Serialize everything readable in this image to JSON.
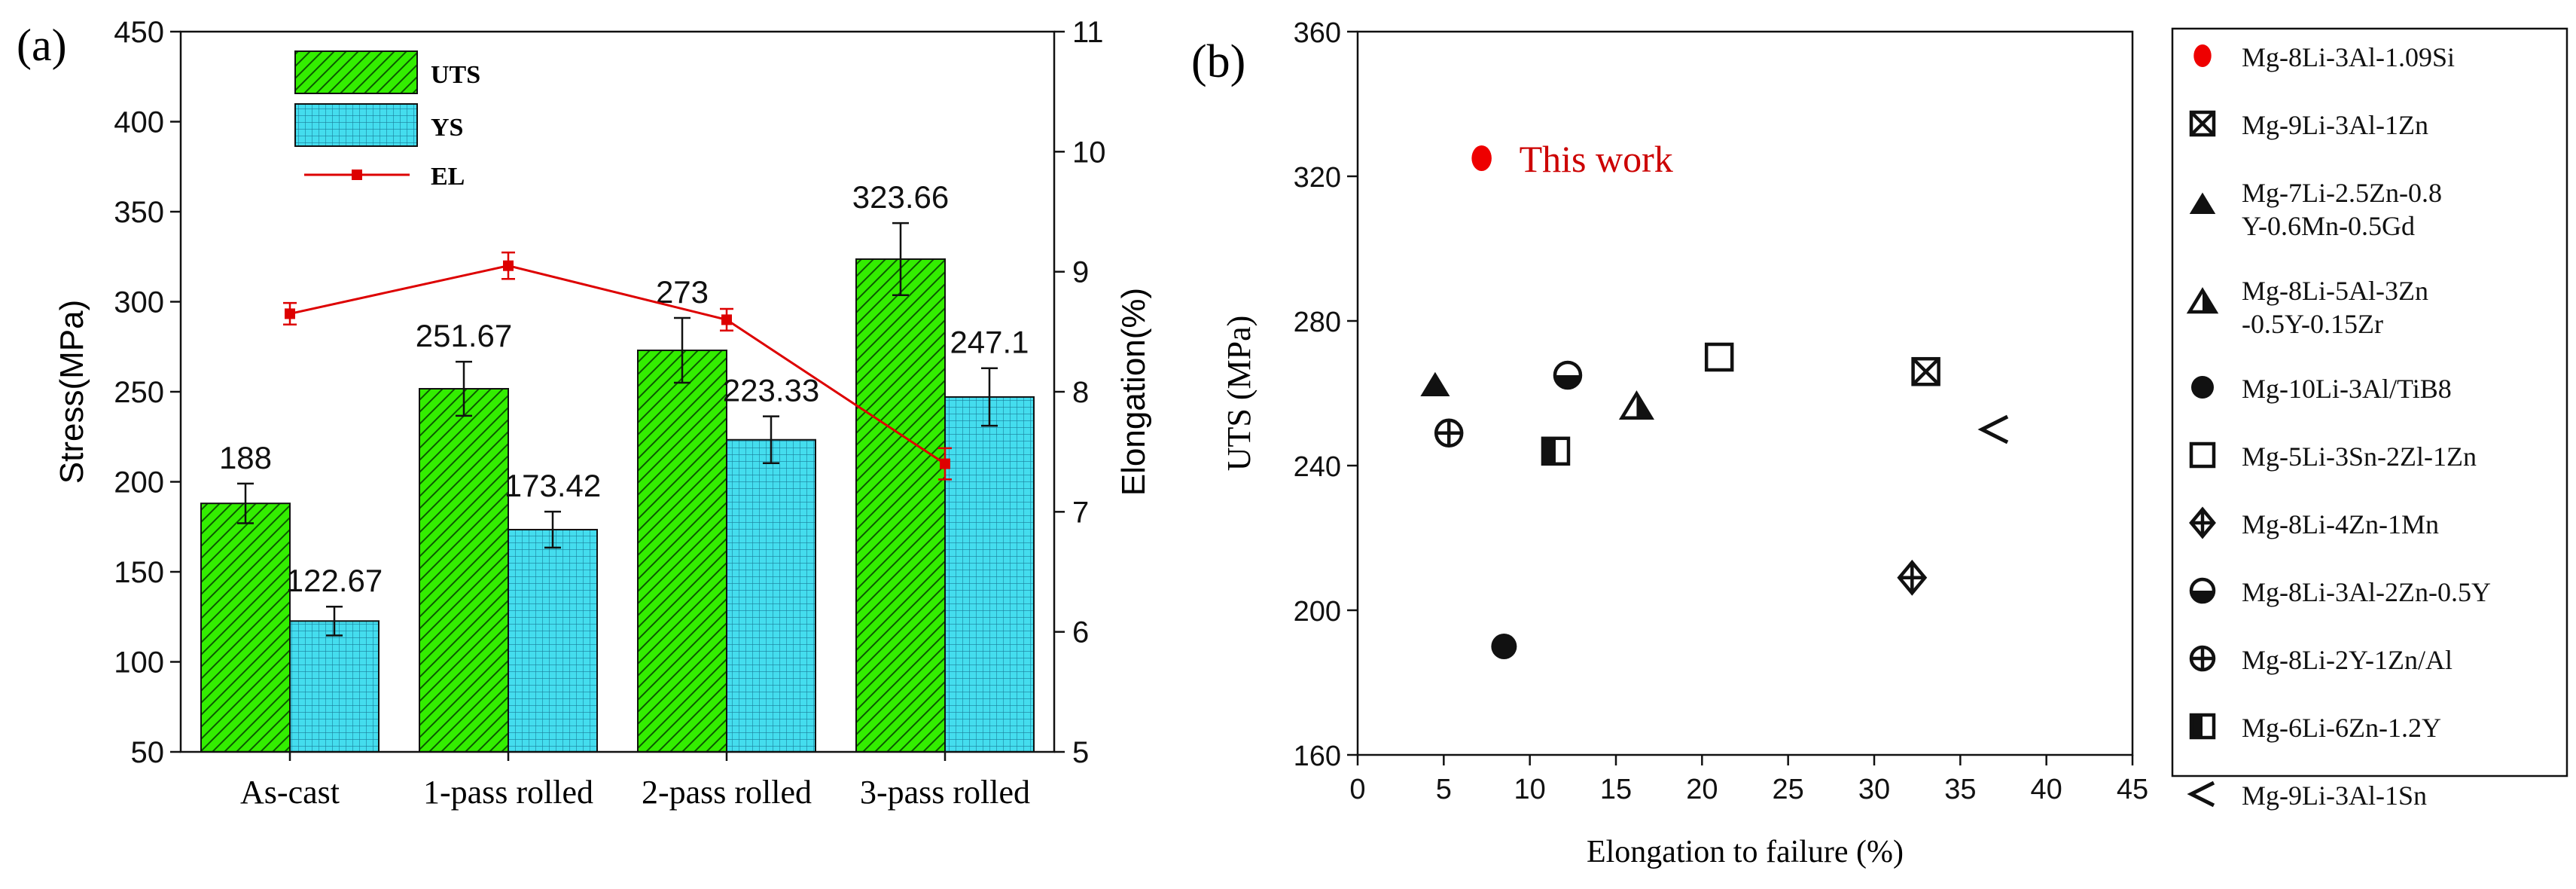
{
  "chart_data": [
    {
      "panel_label": "(a)",
      "type": "bar",
      "categories": [
        "As-cast",
        "1-pass rolled",
        "2-pass rolled",
        "3-pass rolled"
      ],
      "series": [
        {
          "name": "UTS",
          "values": [
            188,
            251.67,
            273,
            323.66
          ],
          "errors": [
            11,
            15,
            18,
            20
          ],
          "labels": [
            "188",
            "251.67",
            "273",
            "323.66"
          ],
          "color": "#33ee00",
          "pattern": "diagonal-hatch"
        },
        {
          "name": "YS",
          "values": [
            122.67,
            173.42,
            223.33,
            247.1
          ],
          "errors": [
            8,
            10,
            13,
            16
          ],
          "labels": [
            "122.67",
            "173.42",
            "223.33",
            "247.1"
          ],
          "color": "#44ddee",
          "pattern": "grid"
        }
      ],
      "line_series": {
        "name": "EL",
        "values": [
          8.65,
          9.05,
          8.6,
          7.4
        ],
        "errors": [
          0.09,
          0.11,
          0.09,
          0.13
        ],
        "color": "#dd0000",
        "axis": "right"
      },
      "ylabel": "Stress(MPa)",
      "ylim": [
        50,
        450
      ],
      "yticks": [
        50,
        100,
        150,
        200,
        250,
        300,
        350,
        400,
        450
      ],
      "y2label": "Elongation(%)",
      "y2lim": [
        5,
        11
      ],
      "y2ticks": [
        5,
        6,
        7,
        8,
        9,
        10,
        11
      ],
      "legend": [
        "UTS",
        "YS",
        "EL"
      ],
      "legend_position": "top-left"
    },
    {
      "panel_label": "(b)",
      "type": "scatter",
      "xlabel": "Elongation to failure (%)",
      "ylabel": "UTS (MPa)",
      "xlim": [
        0,
        45
      ],
      "xticks": [
        0,
        5,
        10,
        15,
        20,
        25,
        30,
        35,
        40,
        45
      ],
      "ylim": [
        160,
        360
      ],
      "yticks": [
        160,
        200,
        240,
        280,
        320,
        360
      ],
      "annotation": {
        "text": "This work",
        "color": "#cc0000"
      },
      "legend_position": "right",
      "points": [
        {
          "name": "Mg-8Li-3Al-1.09Si",
          "legend_lines": [
            "Mg-8Li-3Al-1.09Si"
          ],
          "x": 7.2,
          "y": 325,
          "marker": "filled-red-ellipse"
        },
        {
          "name": "Mg-9Li-3Al-1Zn",
          "legend_lines": [
            "Mg-9Li-3Al-1Zn"
          ],
          "x": 33,
          "y": 266,
          "marker": "boxed-x"
        },
        {
          "name": "Mg-7Li-2.5Zn-0.8Y-0.6Mn-0.5Gd",
          "legend_lines": [
            "Mg-7Li-2.5Zn-0.8",
            "Y-0.6Mn-0.5Gd"
          ],
          "x": 4.5,
          "y": 262,
          "marker": "filled-triangle"
        },
        {
          "name": "Mg-8Li-5Al-3Zn-0.5Y-0.15Zr",
          "legend_lines": [
            "Mg-8Li-5Al-3Zn",
            "-0.5Y-0.15Zr"
          ],
          "x": 16.2,
          "y": 256,
          "marker": "half-triangle"
        },
        {
          "name": "Mg-10Li-3Al/TiB8",
          "legend_lines": [
            "Mg-10Li-3Al/TiB8"
          ],
          "x": 8.5,
          "y": 190,
          "marker": "filled-circle"
        },
        {
          "name": "Mg-5Li-3Sn-2Zl-1Zn",
          "legend_lines": [
            "Mg-5Li-3Sn-2Zl-1Zn"
          ],
          "x": 21,
          "y": 270,
          "marker": "open-square"
        },
        {
          "name": "Mg-8Li-4Zn-1Mn",
          "legend_lines": [
            "Mg-8Li-4Zn-1Mn"
          ],
          "x": 32.2,
          "y": 209,
          "marker": "crossed-diamond"
        },
        {
          "name": "Mg-8Li-3Al-2Zn-0.5Y",
          "legend_lines": [
            "Mg-8Li-3Al-2Zn-0.5Y"
          ],
          "x": 12.2,
          "y": 265,
          "marker": "half-circle"
        },
        {
          "name": "Mg-8Li-2Y-1Zn/Al",
          "legend_lines": [
            "Mg-8Li-2Y-1Zn/Al"
          ],
          "x": 5.3,
          "y": 249,
          "marker": "crossed-circle"
        },
        {
          "name": "Mg-6Li-6Zn-1.2Y",
          "legend_lines": [
            "Mg-6Li-6Zn-1.2Y"
          ],
          "x": 11.5,
          "y": 244,
          "marker": "half-square"
        },
        {
          "name": "Mg-9Li-3Al-1Sn",
          "legend_lines": [
            "Mg-9Li-3Al-1Sn"
          ],
          "x": 37,
          "y": 250,
          "marker": "left-triangle"
        }
      ]
    }
  ]
}
